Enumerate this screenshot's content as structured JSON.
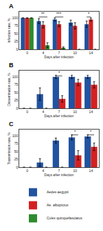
{
  "chart_data": [
    {
      "type": "bar",
      "title": "A",
      "categories": [
        "0",
        "4",
        "7",
        "10",
        "14"
      ],
      "xlabel": "Days after infection",
      "ylabel": "Infection rate, %",
      "ylim": [
        0,
        120
      ],
      "yticks": [
        0,
        25,
        50,
        75,
        100
      ],
      "grid": false,
      "series": [
        {
          "name": "Aedes aegypti",
          "color": "#2153a0",
          "values": [
            100,
            90,
            95,
            85,
            80
          ],
          "errors": [
            0,
            8,
            5,
            8,
            10
          ]
        },
        {
          "name": "Ae. albopictus",
          "color": "#d42020",
          "values": [
            100,
            78,
            80,
            75,
            95
          ],
          "errors": [
            0,
            10,
            8,
            10,
            5
          ]
        },
        {
          "name": "Culex quinquefasciatus",
          "color": "#2e8b2e",
          "values": [
            100,
            13,
            5,
            0,
            0
          ],
          "errors": [
            0,
            8,
            3,
            0,
            0
          ]
        }
      ],
      "annotations": [
        {
          "text": "**",
          "category": "4",
          "from": "Aedes aegypti",
          "to": "Culex quinquefasciatus",
          "y": 103
        },
        {
          "text": "***",
          "category": "7",
          "from": "Aedes aegypti",
          "to": "Culex quinquefasciatus",
          "y": 103
        },
        {
          "text": "*",
          "category": "14",
          "from": "Aedes aegypti",
          "to": "Ae. albopictus",
          "y": 103
        }
      ]
    },
    {
      "type": "bar",
      "title": "B",
      "categories": [
        "0",
        "4",
        "7",
        "10",
        "14"
      ],
      "xlabel": "Days after infection",
      "ylabel": "Dissemination rate, %",
      "ylim": [
        0,
        120
      ],
      "yticks": [
        0,
        25,
        50,
        75,
        100
      ],
      "grid": false,
      "series": [
        {
          "name": "Aedes aegypti",
          "color": "#2153a0",
          "values": [
            0,
            45,
            100,
            100,
            100
          ],
          "errors": [
            0,
            20,
            5,
            5,
            5
          ]
        },
        {
          "name": "Ae. albopictus",
          "color": "#d42020",
          "values": [
            0,
            0,
            30,
            82,
            75
          ],
          "errors": [
            0,
            0,
            10,
            10,
            10
          ]
        }
      ],
      "annotations": [
        {
          "text": "*",
          "category": "7",
          "from": "Aedes aegypti",
          "to": "Ae. albopictus",
          "y": 103
        }
      ]
    },
    {
      "type": "bar",
      "title": "C",
      "categories": [
        "0",
        "4",
        "7",
        "10",
        "14"
      ],
      "xlabel": "Days after infection",
      "ylabel": "Transmission rate, %",
      "ylim": [
        0,
        120
      ],
      "yticks": [
        0,
        25,
        50,
        75,
        100
      ],
      "grid": false,
      "series": [
        {
          "name": "Aedes aegypti",
          "color": "#2153a0",
          "values": [
            0,
            15,
            85,
            95,
            98
          ],
          "errors": [
            0,
            12,
            8,
            8,
            5
          ]
        },
        {
          "name": "Ae. albopictus",
          "color": "#d42020",
          "values": [
            0,
            0,
            0,
            38,
            65
          ],
          "errors": [
            0,
            0,
            0,
            15,
            12
          ]
        }
      ],
      "annotations": [
        {
          "text": "*",
          "category": "10",
          "from": "Aedes aegypti",
          "to": "Ae. albopictus",
          "y": 103
        },
        {
          "text": "*",
          "category": "14",
          "from": "Aedes aegypti",
          "to": "Ae. albopictus",
          "y": 103
        }
      ]
    }
  ]
}
